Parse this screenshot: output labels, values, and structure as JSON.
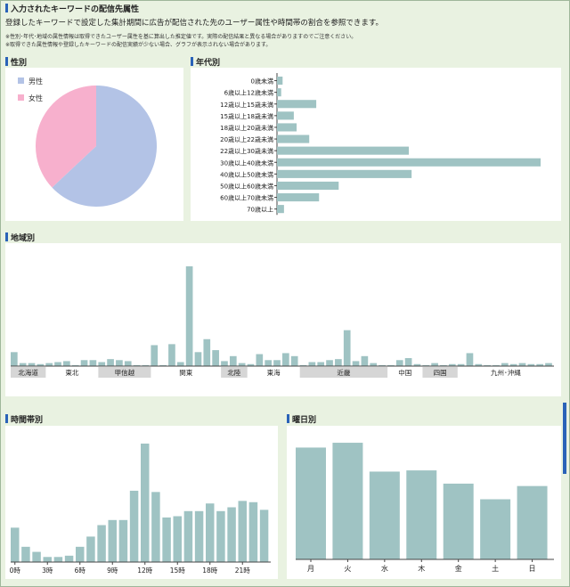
{
  "page": {
    "title": "入力されたキーワードの配信先属性",
    "description": "登録したキーワードで設定した集計期間に広告が配信された先のユーザー属性や時間帯の割合を参照できます。",
    "notes": [
      "※性別･年代･地域の属性情報は取得できたユーザー属性を基に算出した推定値です。実際の配信結果と異なる場合がありますのでご注意ください。",
      "※取得できた属性情報や登録したキーワードの配信実績が少ない場合、グラフが表示されない場合があります。"
    ]
  },
  "colors": {
    "bar": "#9fc3c3",
    "male": "#b3c3e6",
    "female": "#f7b0cd",
    "accent": "#2a62b8"
  },
  "chart_data": [
    {
      "type": "pie",
      "title": "性別",
      "categories": [
        "男性",
        "女性"
      ],
      "values": [
        63,
        37
      ]
    },
    {
      "type": "bar",
      "orientation": "horizontal",
      "title": "年代別",
      "categories": [
        "0歳未満",
        "6歳以上12歳未満",
        "12歳以上15歳未満",
        "15歳以上18歳未満",
        "18歳以上20歳未満",
        "20歳以上22歳未満",
        "22歳以上30歳未満",
        "30歳以上40歳未満",
        "40歳以上50歳未満",
        "50歳以上60歳未満",
        "60歳以上70歳未満",
        "70歳以上"
      ],
      "values": [
        2,
        1.5,
        14,
        6,
        7,
        11.5,
        47,
        94,
        48,
        22,
        15,
        2.5
      ]
    },
    {
      "type": "bar",
      "title": "地域別",
      "region_labels": [
        "北海道",
        "東北",
        "甲信越",
        "関東",
        "北陸",
        "東海",
        "近畿",
        "中国",
        "四国",
        "九州･沖縄"
      ],
      "region_spans": [
        [
          0,
          3
        ],
        [
          4,
          9
        ],
        [
          10,
          15
        ],
        [
          16,
          23
        ],
        [
          24,
          26
        ],
        [
          27,
          32
        ],
        [
          33,
          42
        ],
        [
          43,
          46
        ],
        [
          47,
          50
        ],
        [
          51,
          61
        ]
      ],
      "region_shaded": [
        true,
        false,
        true,
        false,
        true,
        false,
        true,
        false,
        true,
        false
      ],
      "values": [
        14,
        3,
        3,
        2,
        3,
        4,
        5,
        1,
        6,
        6,
        4,
        7,
        6,
        5,
        1,
        1,
        21,
        1,
        22,
        4,
        100,
        14,
        27,
        16,
        5,
        10,
        3,
        2,
        12,
        6,
        6,
        13,
        10,
        1,
        4,
        4,
        6,
        7,
        36,
        5,
        10,
        3,
        1,
        1,
        6,
        8,
        2,
        1,
        3,
        1,
        2,
        2,
        13,
        2,
        1,
        1,
        3,
        2,
        3,
        2,
        2,
        3
      ],
      "ylim": [
        0,
        100
      ]
    },
    {
      "type": "bar",
      "title": "時間帯別",
      "categories": [
        "0時",
        "1時",
        "2時",
        "3時",
        "4時",
        "5時",
        "6時",
        "7時",
        "8時",
        "9時",
        "10時",
        "11時",
        "12時",
        "13時",
        "14時",
        "15時",
        "16時",
        "17時",
        "18時",
        "19時",
        "20時",
        "21時",
        "22時",
        "23時"
      ],
      "tick_labels": [
        "0時",
        "3時",
        "6時",
        "9時",
        "12時",
        "15時",
        "18時",
        "21時"
      ],
      "values": [
        27,
        12,
        8,
        4,
        4,
        5,
        12,
        20,
        29,
        33,
        33,
        56,
        93,
        55,
        35,
        36,
        40,
        40,
        46,
        40,
        43,
        48,
        47,
        41
      ],
      "ylim": [
        0,
        100
      ]
    },
    {
      "type": "bar",
      "title": "曜日別",
      "categories": [
        "月",
        "火",
        "水",
        "木",
        "金",
        "土",
        "日"
      ],
      "values": [
        93,
        97,
        73,
        74,
        63,
        50,
        61
      ],
      "ylim": [
        0,
        100
      ]
    }
  ]
}
